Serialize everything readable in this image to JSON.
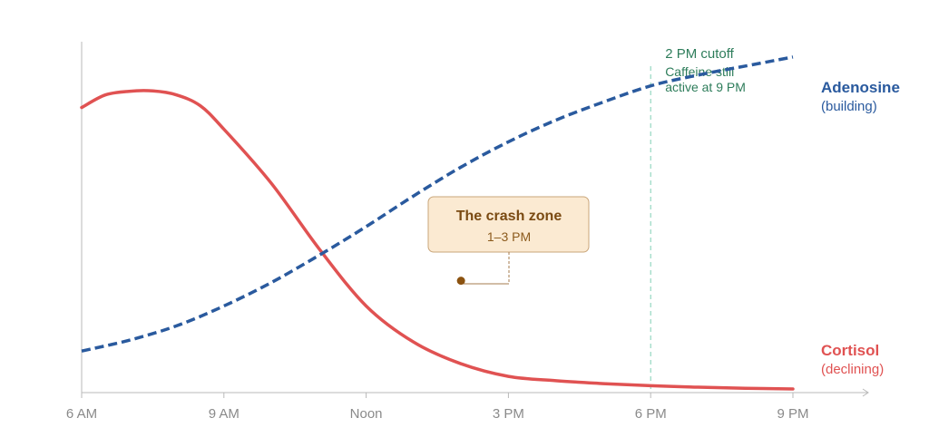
{
  "chart_data": {
    "type": "line",
    "x_ticks": [
      "6 AM",
      "9 AM",
      "Noon",
      "3 PM",
      "6 PM",
      "9 PM"
    ],
    "x": [
      6,
      7,
      8,
      9,
      10,
      11,
      12,
      13,
      14,
      15,
      16,
      17,
      18,
      19,
      20,
      21
    ],
    "xlim": [
      6,
      21.8
    ],
    "ylim": [
      0,
      100
    ],
    "grid": false,
    "series": [
      {
        "name": "Cortisol",
        "subtitle": "(declining)",
        "color": "#e05252",
        "style": "solid",
        "points": [
          [
            6,
            79
          ],
          [
            6.5,
            82.5
          ],
          [
            7,
            83.5
          ],
          [
            7.5,
            83.6
          ],
          [
            8,
            82.5
          ],
          [
            8.5,
            79.5
          ],
          [
            9,
            73
          ],
          [
            10,
            58
          ],
          [
            11,
            40
          ],
          [
            12,
            24
          ],
          [
            13,
            14
          ],
          [
            14,
            8
          ],
          [
            15,
            4.5
          ],
          [
            16,
            3.3
          ],
          [
            17,
            2.5
          ],
          [
            18,
            1.9
          ],
          [
            19,
            1.5
          ],
          [
            20,
            1.2
          ],
          [
            21,
            1
          ]
        ]
      },
      {
        "name": "Adenosine",
        "subtitle": "(building)",
        "color": "#2a5a9e",
        "style": "dashed",
        "points": [
          [
            6,
            11.5
          ],
          [
            7,
            14.5
          ],
          [
            8,
            18.5
          ],
          [
            9,
            24
          ],
          [
            10,
            30.5
          ],
          [
            11,
            38
          ],
          [
            12,
            46
          ],
          [
            13,
            54.5
          ],
          [
            14,
            62.5
          ],
          [
            15,
            69.5
          ],
          [
            16,
            75.5
          ],
          [
            17,
            80.5
          ],
          [
            18,
            85
          ],
          [
            19,
            88
          ],
          [
            20,
            90.5
          ],
          [
            21,
            93
          ]
        ]
      }
    ],
    "annotations": {
      "cutoff": {
        "x": 18,
        "title": "2 PM cutoff",
        "note_lines": [
          "Caffeine still",
          "active at 9 PM"
        ],
        "color": "#2e7d5b"
      },
      "crash_zone": {
        "title": "The crash zone",
        "subtitle": "1–3 PM",
        "marker": [
          14,
          31
        ],
        "color": "#7a4a12"
      }
    }
  }
}
